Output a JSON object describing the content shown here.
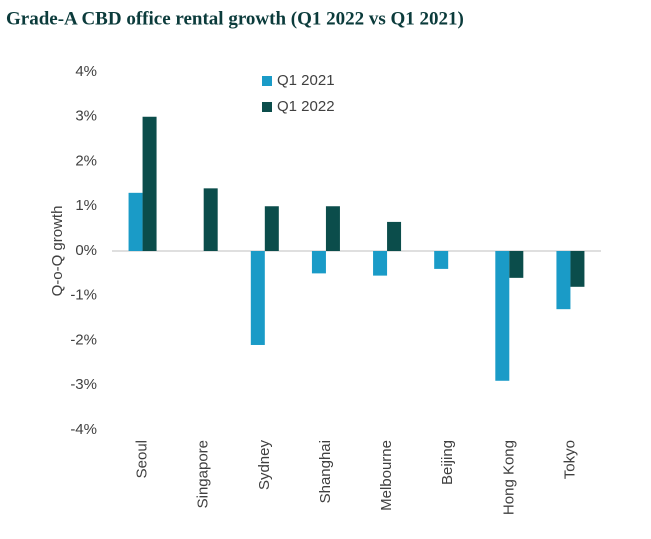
{
  "chart_data": {
    "type": "bar",
    "title": "Grade-A CBD office rental growth (Q1 2022 vs Q1 2021)",
    "y_label": "Q-o-Q growth",
    "categories": [
      "Seoul",
      "Singapore",
      "Sydney",
      "Shanghai",
      "Melbourne",
      "Beijing",
      "Hong Kong",
      "Tokyo"
    ],
    "series": [
      {
        "name": "Q1 2021",
        "color": "#1a9bc7",
        "values": [
          1.3,
          0,
          -2.1,
          -0.5,
          -0.55,
          -0.4,
          -2.9,
          -1.3
        ]
      },
      {
        "name": "Q1 2022",
        "color": "#0b4d4b",
        "values": [
          3.0,
          1.4,
          1.0,
          1.0,
          0.65,
          0,
          -0.6,
          -0.8
        ]
      }
    ],
    "ylim": [
      -4,
      4
    ],
    "yticks": [
      {
        "value": -4,
        "label": "-4%"
      },
      {
        "value": -3,
        "label": "-3%"
      },
      {
        "value": -2,
        "label": "-2%"
      },
      {
        "value": -1,
        "label": "-1%"
      },
      {
        "value": 0,
        "label": "0%"
      },
      {
        "value": 1,
        "label": "1%"
      },
      {
        "value": 2,
        "label": "2%"
      },
      {
        "value": 3,
        "label": "3%"
      },
      {
        "value": 4,
        "label": "4%"
      }
    ],
    "grid": false
  }
}
